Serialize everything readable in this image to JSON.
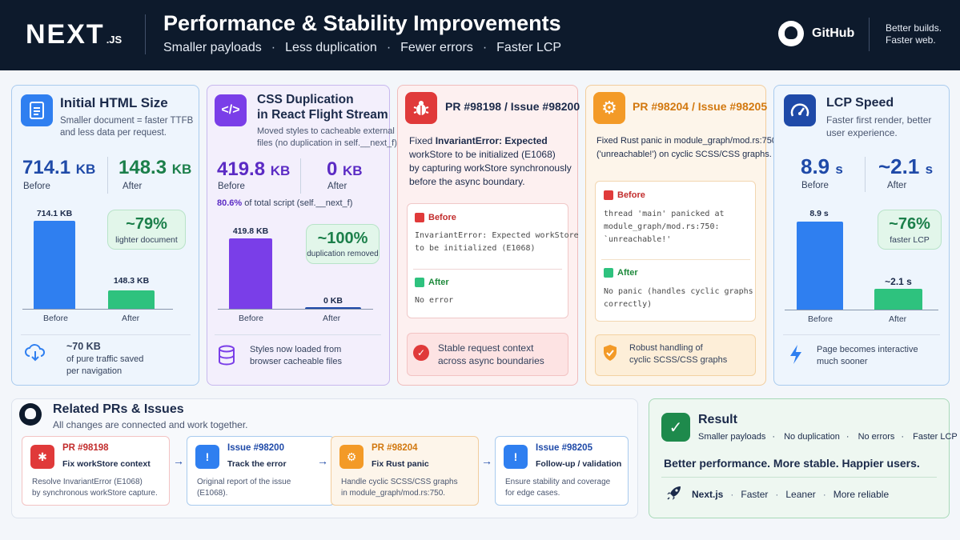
{
  "header": {
    "logo": "NEXT",
    "logo_suffix": ".JS",
    "title": "Performance & Stability Improvements",
    "subtitle_items": [
      "Smaller payloads",
      "Less duplication",
      "Fewer errors",
      "Faster LCP"
    ],
    "sep": "·",
    "github_label": "GitHub",
    "tagline_1": "Better builds.",
    "tagline_2": "Faster web."
  },
  "html_card": {
    "title": "Initial HTML Size",
    "desc_1": "Smaller document = faster TTFB",
    "desc_2": "and less data per request.",
    "before_value": "714.1",
    "before_unit": "KB",
    "before_label": "Before",
    "after_value": "148.3",
    "after_unit": "KB",
    "after_label": "After",
    "bar_before_label": "714.1 KB",
    "bar_after_label": "148.3 KB",
    "bar_before_value": 714.1,
    "bar_after_value": 148.3,
    "pill_value": "~79%",
    "pill_label": "lighter document",
    "foot_bold": "~70 KB",
    "foot_1": "of pure traffic saved",
    "foot_2": "per navigation"
  },
  "css_card": {
    "title_1": "CSS Duplication",
    "title_2": "in React Flight Stream",
    "desc_1": "Moved styles to cacheable external",
    "desc_2": "files (no duplication in self.__next_f).",
    "before_value": "419.8",
    "before_unit": "KB",
    "before_label": "Before",
    "after_value": "0",
    "after_unit": "KB",
    "after_label": "After",
    "share_bold": "80.6%",
    "share_text": "of total script (self.__next_f)",
    "bar_before_label": "419.8 KB",
    "bar_after_label": "0 KB",
    "bar_before_value": 419.8,
    "bar_after_value": 0,
    "pill_value": "~100%",
    "pill_label": "duplication removed",
    "foot_1": "Styles now loaded from",
    "foot_2": "browser cacheable files"
  },
  "pr1_card": {
    "title": "PR #98198 / Issue #98200",
    "desc_1": "Fixed ",
    "desc_bold": "InvariantError: Expected",
    "desc_2": "workStore to be initialized (E1068)",
    "desc_3": "by capturing workStore synchronously",
    "desc_4": "before the async boundary.",
    "before_tag": "Before",
    "before_code_1": "InvariantError: Expected workStore",
    "before_code_2": "to be initialized (E1068)",
    "after_tag": "After",
    "after_code": "No error",
    "foot_1": "Stable request context",
    "foot_2": "across async boundaries"
  },
  "pr2_card": {
    "title": "PR #98204 / Issue #98205",
    "desc_1": "Fixed Rust panic in module_graph/mod.rs:750",
    "desc_2": "('unreachable!') on cyclic SCSS/CSS graphs.",
    "before_tag": "Before",
    "before_code_1": "thread 'main' panicked at",
    "before_code_2": "module_graph/mod.rs:750:",
    "before_code_3": "`unreachable!'",
    "after_tag": "After",
    "after_code_1": "No panic (handles cyclic graphs",
    "after_code_2": "correctly)",
    "foot_1": "Robust handling of",
    "foot_2": "cyclic SCSS/CSS graphs"
  },
  "lcp_card": {
    "title": "LCP Speed",
    "desc_1": "Faster first render, better",
    "desc_2": "user experience.",
    "before_value": "8.9",
    "before_unit": "s",
    "before_label": "Before",
    "after_value": "~2.1",
    "after_unit": "s",
    "after_label": "After",
    "bar_before_label": "8.9 s",
    "bar_after_label": "~2.1 s",
    "bar_before_value": 8.9,
    "bar_after_value": 2.1,
    "pill_value": "~76%",
    "pill_label": "faster LCP",
    "foot_1": "Page becomes interactive",
    "foot_2": "much sooner"
  },
  "related": {
    "title": "Related PRs & Issues",
    "subtitle": "All changes are connected and work together.",
    "steps": [
      {
        "head": "PR #98198",
        "title": "Fix workStore context",
        "d1": "Resolve InvariantError (E1068)",
        "d2": "by synchronous workStore capture."
      },
      {
        "head": "Issue #98200",
        "title": "Track the error",
        "d1": "Original report of the issue",
        "d2": "(E1068)."
      },
      {
        "head": "PR #98204",
        "title": "Fix Rust panic",
        "d1": "Handle cyclic SCSS/CSS graphs",
        "d2": "in module_graph/mod.rs:750."
      },
      {
        "head": "Issue #98205",
        "title": "Follow-up / validation",
        "d1": "Ensure stability and coverage",
        "d2": "for edge cases."
      }
    ],
    "arrow": "→"
  },
  "result": {
    "title": "Result",
    "items": [
      "Smaller payloads",
      "No duplication",
      "No errors",
      "Faster LCP"
    ],
    "sep": "·",
    "headline": "Better performance. More stable. Happier users.",
    "foot_brand": "Next.js",
    "foot_items": [
      "Faster",
      "Leaner",
      "More reliable"
    ]
  },
  "colors": {
    "blue": "#2f7ff0",
    "green": "#2ec27e",
    "purple": "#7a3ee8",
    "red": "#e03a3a",
    "orange": "#f39a27",
    "navy": "#0d1a2c"
  }
}
